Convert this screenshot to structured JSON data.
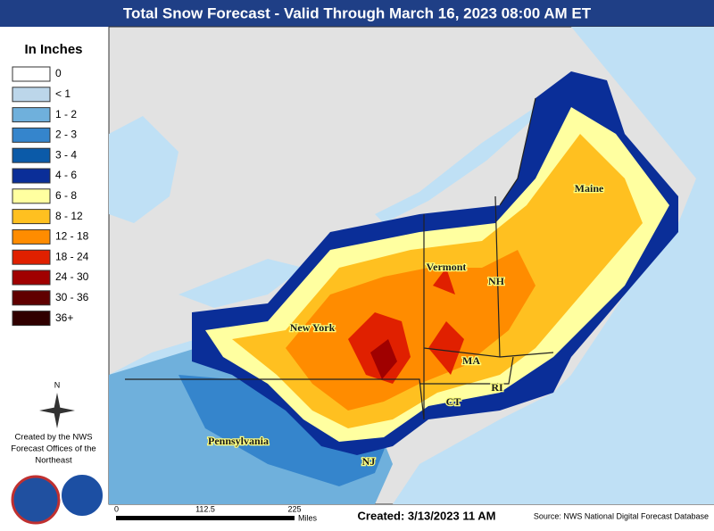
{
  "header": {
    "title": "Total Snow Forecast - Valid Through March 16, 2023 08:00 AM ET"
  },
  "legend": {
    "title": "In Inches",
    "items": [
      {
        "label": "0",
        "color": "#ffffff"
      },
      {
        "label": "< 1",
        "color": "#bcd6ea"
      },
      {
        "label": "1 - 2",
        "color": "#6fb0dc"
      },
      {
        "label": "2 - 3",
        "color": "#3585cc"
      },
      {
        "label": "3 - 4",
        "color": "#0b5aa8"
      },
      {
        "label": "4 - 6",
        "color": "#0a2e98"
      },
      {
        "label": "6 - 8",
        "color": "#ffffa0"
      },
      {
        "label": "8 - 12",
        "color": "#ffc020"
      },
      {
        "label": "12 - 18",
        "color": "#ff8c00"
      },
      {
        "label": "18 - 24",
        "color": "#e02000"
      },
      {
        "label": "24 - 30",
        "color": "#a00000"
      },
      {
        "label": "30 - 36",
        "color": "#600000"
      },
      {
        "label": "36+",
        "color": "#300000"
      }
    ]
  },
  "compass": "N",
  "credits": [
    "Created by the NWS",
    "Forecast Offices of the",
    "Northeast"
  ],
  "states": [
    "Maine",
    "Vermont",
    "NH",
    "New York",
    "MA",
    "RI",
    "CT",
    "Pennsylvania",
    "NJ"
  ],
  "scale": {
    "ticks": [
      "0",
      "112.5",
      "225"
    ],
    "unit": "Miles"
  },
  "created": "Created: 3/13/2023 11 AM",
  "source": "Source: NWS National Digital Forecast Database"
}
